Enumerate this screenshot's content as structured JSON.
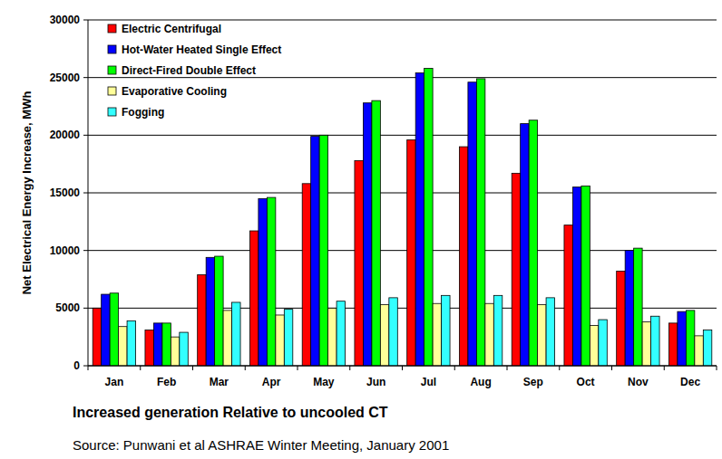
{
  "chart_data": {
    "type": "bar",
    "title": "Increased generation Relative to uncooled CT",
    "subtitle": "Source: Punwani et al  ASHRAE Winter Meeting, January 2001",
    "y_label": "Net Electrical Energy Increase, MWh",
    "categories": [
      "Jan",
      "Feb",
      "Mar",
      "Apr",
      "May",
      "Jun",
      "Jul",
      "Aug",
      "Sep",
      "Oct",
      "Nov",
      "Dec"
    ],
    "series": [
      {
        "name": "Electric Centrifugal",
        "color": "#ff0000",
        "values": [
          5000,
          3100,
          7900,
          11700,
          15800,
          17800,
          19600,
          19000,
          16700,
          12200,
          8200,
          3700
        ]
      },
      {
        "name": "Hot-Water Heated Single Effect",
        "color": "#0000ff",
        "values": [
          6200,
          3700,
          9400,
          14500,
          19900,
          22800,
          25400,
          24600,
          21000,
          15500,
          10000,
          4700
        ]
      },
      {
        "name": "Direct-Fired Double Effect",
        "color": "#00ff00",
        "values": [
          6300,
          3700,
          9500,
          14600,
          20000,
          23000,
          25800,
          24900,
          21300,
          15600,
          10200,
          4800
        ]
      },
      {
        "name": "Evaporative Cooling",
        "color": "#ffff99",
        "values": [
          3400,
          2500,
          4800,
          4400,
          5000,
          5300,
          5400,
          5400,
          5300,
          3500,
          3800,
          2600
        ]
      },
      {
        "name": "Fogging",
        "color": "#33ffff",
        "values": [
          3900,
          2900,
          5500,
          4900,
          5600,
          5900,
          6100,
          6100,
          5900,
          4000,
          4300,
          3100
        ]
      }
    ],
    "ylim": [
      0,
      30000
    ],
    "yticks": [
      0,
      5000,
      10000,
      15000,
      20000,
      25000,
      30000
    ],
    "grid": true,
    "legend": "top-left"
  }
}
